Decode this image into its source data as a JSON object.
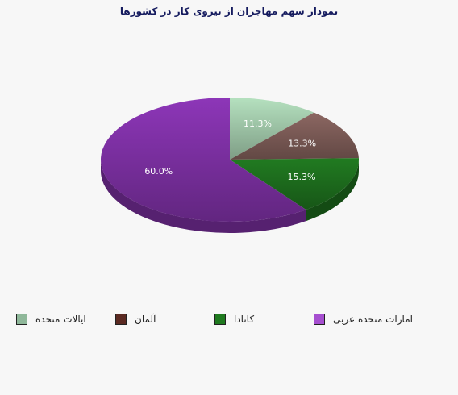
{
  "chart_data": {
    "type": "pie",
    "title": "نمودار سهم مهاجران از نیروی کار در کشورها",
    "categories": [
      "ایالات متحده",
      "آلمان",
      "کانادا",
      "امارات متحده عربی"
    ],
    "values": [
      11.3,
      13.3,
      15.3,
      60.0
    ],
    "labels": [
      "11.3%",
      "13.3%",
      "15.3%",
      "60.0%"
    ],
    "colors": [
      "#9dc4a6",
      "#7a5a55",
      "#1d6b1d",
      "#7b2fa0"
    ],
    "legend_colors": [
      "#8fb89a",
      "#5b2a22",
      "#1f7a1f",
      "#a64fd0"
    ],
    "legend_position": "bottom",
    "style": "3d-tilted"
  }
}
